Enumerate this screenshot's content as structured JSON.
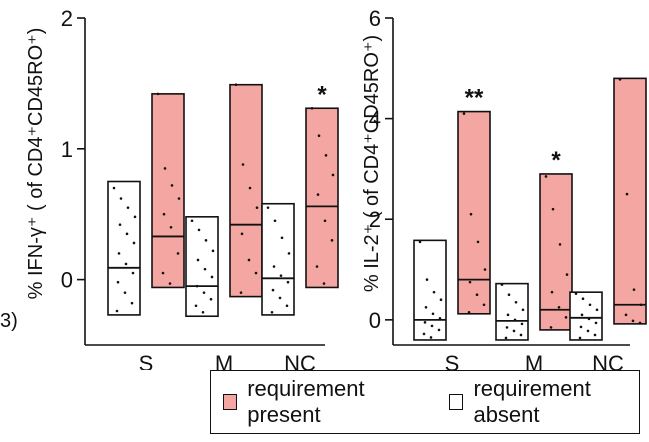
{
  "figure_fragment": "3)",
  "colors": {
    "present": "#f4a6a2",
    "absent": "#ffffff",
    "stroke": "#111111"
  },
  "legend": {
    "present_label": "requirement present",
    "absent_label": "requirement absent"
  },
  "chart_data": [
    {
      "type": "box",
      "ylabel": "% IFN-γ⁺ ( of CD4⁺CD45RO⁺)",
      "ylim": [
        -0.5,
        2
      ],
      "yticks": [
        "0",
        "1",
        "2"
      ],
      "ytick_values": [
        0,
        1,
        2
      ],
      "categories": [
        "S",
        "M",
        "NC"
      ],
      "series": [
        {
          "name": "requirement absent",
          "boxes": [
            {
              "min": -0.27,
              "median": 0.09,
              "max": 0.75,
              "points": [
                0.7,
                0.62,
                0.55,
                0.48,
                0.42,
                0.35,
                0.28,
                0.2,
                0.12,
                0.05,
                -0.02,
                -0.1,
                -0.18,
                -0.24
              ]
            },
            {
              "min": -0.28,
              "median": -0.05,
              "max": 0.48,
              "points": [
                0.45,
                0.38,
                0.3,
                0.22,
                0.15,
                0.08,
                0.02,
                -0.05,
                -0.1,
                -0.15,
                -0.2,
                -0.25
              ]
            },
            {
              "min": -0.27,
              "median": 0.01,
              "max": 0.58,
              "points": [
                0.55,
                0.45,
                0.32,
                0.2,
                0.1,
                0.03,
                -0.02,
                -0.08,
                -0.14,
                -0.2,
                -0.25
              ]
            }
          ]
        },
        {
          "name": "requirement present",
          "boxes": [
            {
              "min": -0.06,
              "median": 0.33,
              "max": 1.42,
              "points": [
                1.42,
                0.85,
                0.72,
                0.62,
                0.5,
                0.4,
                0.2,
                0.05,
                -0.03
              ]
            },
            {
              "min": -0.13,
              "median": 0.42,
              "max": 1.49,
              "points": [
                1.49,
                0.88,
                0.7,
                0.55,
                0.35,
                0.15,
                0.05,
                -0.1
              ]
            },
            {
              "min": -0.06,
              "median": 0.56,
              "max": 1.31,
              "points": [
                1.31,
                1.1,
                0.95,
                0.8,
                0.65,
                0.45,
                0.3,
                0.1,
                -0.03
              ]
            }
          ]
        }
      ],
      "annotations": [
        {
          "category": "NC",
          "series": "requirement present",
          "text": "*"
        }
      ]
    },
    {
      "type": "box",
      "ylabel": "% IL-2⁺ ( of CD4⁺CD45RO⁺)",
      "ylim": [
        -0.5,
        6
      ],
      "yticks": [
        "0",
        "2",
        "4",
        "6"
      ],
      "ytick_values": [
        0,
        2,
        4,
        6
      ],
      "categories": [
        "S",
        "M",
        "NC"
      ],
      "series": [
        {
          "name": "requirement absent",
          "boxes": [
            {
              "min": -0.4,
              "median": 0.0,
              "max": 1.58,
              "points": [
                1.55,
                0.8,
                0.55,
                0.4,
                0.25,
                0.12,
                0.03,
                -0.05,
                -0.12,
                -0.2,
                -0.28,
                -0.35
              ]
            },
            {
              "min": -0.4,
              "median": -0.02,
              "max": 0.72,
              "points": [
                0.7,
                0.5,
                0.35,
                0.2,
                0.1,
                0.0,
                -0.08,
                -0.15,
                -0.22,
                -0.3,
                -0.36
              ]
            },
            {
              "min": -0.4,
              "median": 0.04,
              "max": 0.55,
              "points": [
                0.52,
                0.42,
                0.3,
                0.2,
                0.1,
                0.02,
                -0.06,
                -0.14,
                -0.22,
                -0.3,
                -0.36
              ]
            }
          ]
        },
        {
          "name": "requirement present",
          "boxes": [
            {
              "min": 0.12,
              "median": 0.8,
              "max": 4.14,
              "points": [
                4.1,
                2.1,
                1.55,
                1.0,
                0.75,
                0.5,
                0.3,
                0.15
              ]
            },
            {
              "min": -0.2,
              "median": 0.2,
              "max": 2.9,
              "points": [
                2.85,
                2.2,
                1.5,
                0.9,
                0.55,
                0.25,
                0.05,
                -0.15
              ]
            },
            {
              "min": -0.08,
              "median": 0.3,
              "max": 4.8,
              "points": [
                4.78,
                2.5,
                0.6,
                0.3,
                0.1,
                -0.02,
                -0.06
              ]
            }
          ]
        }
      ],
      "annotations": [
        {
          "category": "S",
          "series": "requirement present",
          "text": "**"
        },
        {
          "category": "M",
          "series": "requirement present",
          "text": "*"
        }
      ]
    }
  ]
}
